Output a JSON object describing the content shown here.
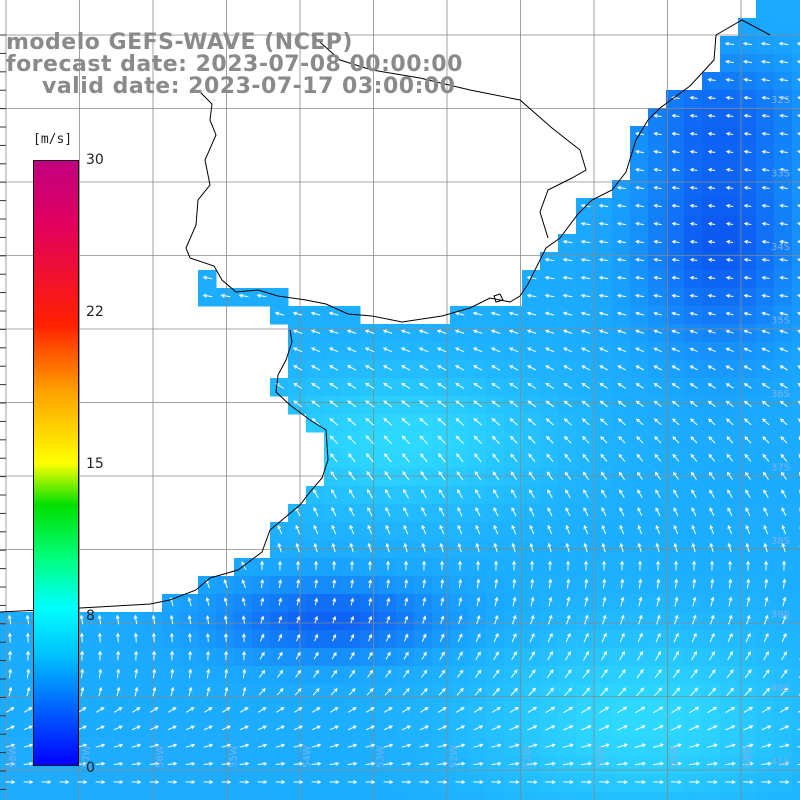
{
  "title": {
    "model": "modelo GEFS-WAVE (NCEP)",
    "forecast": "forecast date: 2023-07-08 00:00:00",
    "valid": "valid date: 2023-07-17 03:00:00"
  },
  "colorbar": {
    "unit": "[m/s]",
    "ticks": [
      "30",
      "22",
      "15",
      "8",
      "0"
    ],
    "colors": [
      "#0000ff",
      "#00bfff",
      "#00ffff",
      "#00ff80",
      "#00e000",
      "#ffff00",
      "#ffa000",
      "#ff2000",
      "#c00080"
    ]
  },
  "lat_labels": [
    "32S",
    "33S",
    "34S",
    "35S",
    "36S",
    "37S",
    "38S",
    "39S",
    "40S",
    "41S"
  ],
  "lon_labels": [
    "58W",
    "57W",
    "56W",
    "55W",
    "54W",
    "53W",
    "52W",
    "51W",
    "50W",
    "49W",
    "48W"
  ],
  "colors": {
    "land": "#ffffff",
    "grid": "#888888",
    "coast": "#000000",
    "arrow": "#ffffff",
    "sea_calm": "#0a50f0",
    "sea_mid": "#1aa6ff",
    "sea_strong": "#33e6ff"
  }
}
